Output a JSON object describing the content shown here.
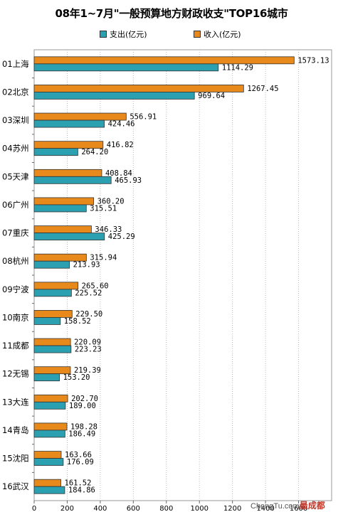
{
  "chart_data": {
    "type": "bar",
    "orientation": "horizontal",
    "title": "08年1~7月\"一般预算地方财政收支\"TOP16城市",
    "categories": [
      "01上海",
      "02北京",
      "03深圳",
      "04苏州",
      "05天津",
      "06广州",
      "07重庆",
      "08杭州",
      "09宁波",
      "10南京",
      "11成都",
      "12无锡",
      "13大连",
      "14青岛",
      "15沈阳",
      "16武汉"
    ],
    "series": [
      {
        "name": "收入(亿元)",
        "color": "#e8891c",
        "values": [
          1573.13,
          1267.45,
          556.91,
          416.82,
          408.84,
          360.2,
          346.33,
          315.94,
          265.6,
          229.5,
          220.09,
          219.39,
          202.7,
          198.28,
          163.66,
          161.52
        ]
      },
      {
        "name": "支出(亿元)",
        "color": "#2aa0b0",
        "values": [
          1114.29,
          969.64,
          424.46,
          264.2,
          465.93,
          315.51,
          425.29,
          213.93,
          225.52,
          158.52,
          223.23,
          153.2,
          189.0,
          186.49,
          176.09,
          184.86
        ]
      }
    ],
    "legend_order": [
      "支出(亿元)",
      "收入(亿元)"
    ],
    "xlim": [
      0,
      1800
    ],
    "xticks": [
      0,
      200,
      400,
      600,
      800,
      1000,
      1200,
      1400,
      1600
    ],
    "grid": true,
    "legend_position": "top"
  },
  "watermark": {
    "text": "ChengTu.com",
    "cn": "最成都"
  }
}
